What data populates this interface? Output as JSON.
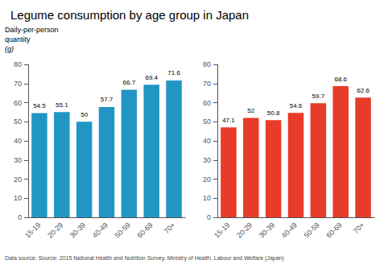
{
  "chart_data": [
    {
      "type": "bar",
      "title": "Legume consumption by age group in Japan",
      "ylabel": "Daily-per-person\nquantity\n(g)",
      "annotations": [
        "Data source: Source: 2015 National Health and Nutrition Survey, Ministry of Health, Labour and Welfare (Japan)"
      ],
      "categories": [
        "15-19",
        "20-29",
        "30-39",
        "40-49",
        "50-59",
        "60-69",
        "70+"
      ],
      "values": [
        54.5,
        55.1,
        50,
        57.7,
        66.7,
        69.4,
        71.6
      ],
      "color": "#2196C4",
      "ylim": [
        0,
        80
      ],
      "yticks": [
        0,
        10,
        20,
        30,
        40,
        50,
        60,
        70,
        80
      ],
      "grid": false,
      "data_labels": true
    },
    {
      "type": "bar",
      "categories": [
        "15-19",
        "20-29",
        "30-39",
        "40-49",
        "50-59",
        "60-69",
        "70+"
      ],
      "values": [
        47.1,
        52,
        50.8,
        54.6,
        59.7,
        68.6,
        62.6
      ],
      "color": "#E83B2A",
      "ylim": [
        0,
        80
      ],
      "yticks": [
        0,
        10,
        20,
        30,
        40,
        50,
        60,
        70,
        80
      ],
      "grid": false,
      "data_labels": true
    }
  ]
}
